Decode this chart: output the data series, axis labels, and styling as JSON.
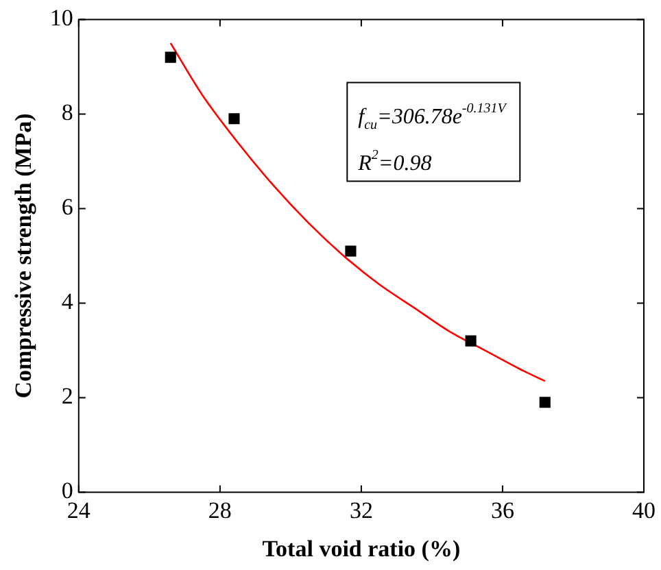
{
  "chart_data": {
    "type": "scatter",
    "xlabel": "Total void ratio (%)",
    "ylabel": "Compressive strength (MPa)",
    "xlim": [
      24,
      40
    ],
    "xticks": [
      24,
      28,
      32,
      36,
      40
    ],
    "ylim": [
      0,
      10
    ],
    "yticks": [
      0,
      2,
      4,
      6,
      8,
      10
    ],
    "grid": false,
    "legend": false,
    "marker": "square",
    "series": [
      {
        "color": "#000000",
        "x": [
          26.6,
          28.4,
          31.7,
          35.1,
          37.2
        ],
        "values": [
          9.2,
          7.9,
          5.1,
          3.2,
          1.9
        ]
      },
      {
        "type": "line",
        "color": "#ff0000",
        "marker": "none",
        "x": [
          26.6,
          27.5,
          28.5,
          29.5,
          30.5,
          31.5,
          32.5,
          33.5,
          34.5,
          35.5,
          36.5,
          37.2
        ],
        "values": [
          9.5,
          8.4,
          7.4,
          6.5,
          5.7,
          5.0,
          4.4,
          3.9,
          3.4,
          3.0,
          2.6,
          2.35
        ]
      }
    ],
    "annotations": [
      "f$_{cu}$=306.78e$^{-0.131V}$",
      "R$^{2}$=0.98"
    ]
  }
}
